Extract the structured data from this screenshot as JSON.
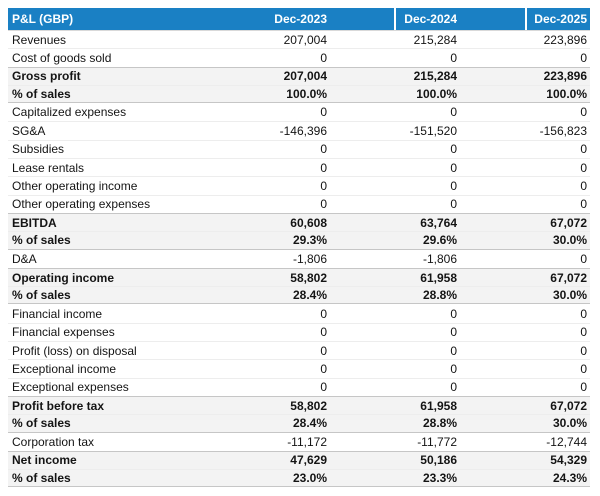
{
  "colors": {
    "header_bg": "#1a80c4",
    "header_text": "#ffffff",
    "subtotal_bg": "#f3f3f3",
    "block_divider": "#c6c6c6",
    "row_divider": "#ededed"
  },
  "chart_data": {
    "type": "table",
    "title": "P&L (GBP)",
    "currency": "GBP",
    "columns": [
      "P&L (GBP)",
      "Dec-2023",
      "Dec-2024",
      "Dec-2025"
    ],
    "rows": [
      {
        "label": "Revenues",
        "values": [
          "207,004",
          "215,284",
          "223,896"
        ],
        "style": "normal"
      },
      {
        "label": "Cost of goods sold",
        "values": [
          "0",
          "0",
          "0"
        ],
        "style": "normal"
      },
      {
        "label": "Gross profit",
        "values": [
          "207,004",
          "215,284",
          "223,896"
        ],
        "style": "subtotal"
      },
      {
        "label": "% of sales",
        "values": [
          "100.0%",
          "100.0%",
          "100.0%"
        ],
        "style": "subtotal"
      },
      {
        "label": "Capitalized expenses",
        "values": [
          "0",
          "0",
          "0"
        ],
        "style": "normal"
      },
      {
        "label": "SG&A",
        "values": [
          "-146,396",
          "-151,520",
          "-156,823"
        ],
        "style": "normal"
      },
      {
        "label": "Subsidies",
        "values": [
          "0",
          "0",
          "0"
        ],
        "style": "normal"
      },
      {
        "label": "Lease rentals",
        "values": [
          "0",
          "0",
          "0"
        ],
        "style": "normal"
      },
      {
        "label": "Other operating income",
        "values": [
          "0",
          "0",
          "0"
        ],
        "style": "normal"
      },
      {
        "label": "Other operating expenses",
        "values": [
          "0",
          "0",
          "0"
        ],
        "style": "normal"
      },
      {
        "label": "EBITDA",
        "values": [
          "60,608",
          "63,764",
          "67,072"
        ],
        "style": "subtotal"
      },
      {
        "label": "% of sales",
        "values": [
          "29.3%",
          "29.6%",
          "30.0%"
        ],
        "style": "subtotal"
      },
      {
        "label": "D&A",
        "values": [
          "-1,806",
          "-1,806",
          "0"
        ],
        "style": "normal"
      },
      {
        "label": "Operating income",
        "values": [
          "58,802",
          "61,958",
          "67,072"
        ],
        "style": "subtotal"
      },
      {
        "label": "% of sales",
        "values": [
          "28.4%",
          "28.8%",
          "30.0%"
        ],
        "style": "subtotal"
      },
      {
        "label": "Financial income",
        "values": [
          "0",
          "0",
          "0"
        ],
        "style": "normal"
      },
      {
        "label": "Financial expenses",
        "values": [
          "0",
          "0",
          "0"
        ],
        "style": "normal"
      },
      {
        "label": "Profit (loss) on disposal",
        "values": [
          "0",
          "0",
          "0"
        ],
        "style": "normal"
      },
      {
        "label": "Exceptional income",
        "values": [
          "0",
          "0",
          "0"
        ],
        "style": "normal"
      },
      {
        "label": "Exceptional expenses",
        "values": [
          "0",
          "0",
          "0"
        ],
        "style": "normal"
      },
      {
        "label": "Profit before tax",
        "values": [
          "58,802",
          "61,958",
          "67,072"
        ],
        "style": "subtotal"
      },
      {
        "label": "% of sales",
        "values": [
          "28.4%",
          "28.8%",
          "30.0%"
        ],
        "style": "subtotal"
      },
      {
        "label": "Corporation tax",
        "values": [
          "-11,172",
          "-11,772",
          "-12,744"
        ],
        "style": "normal"
      },
      {
        "label": "Net income",
        "values": [
          "47,629",
          "50,186",
          "54,329"
        ],
        "style": "subtotal"
      },
      {
        "label": "% of sales",
        "values": [
          "23.0%",
          "23.3%",
          "24.3%"
        ],
        "style": "subtotal"
      }
    ]
  },
  "table": {
    "header": {
      "label": "P&L (GBP)",
      "periods": [
        "Dec-2023",
        "Dec-2024",
        "Dec-2025"
      ]
    }
  }
}
